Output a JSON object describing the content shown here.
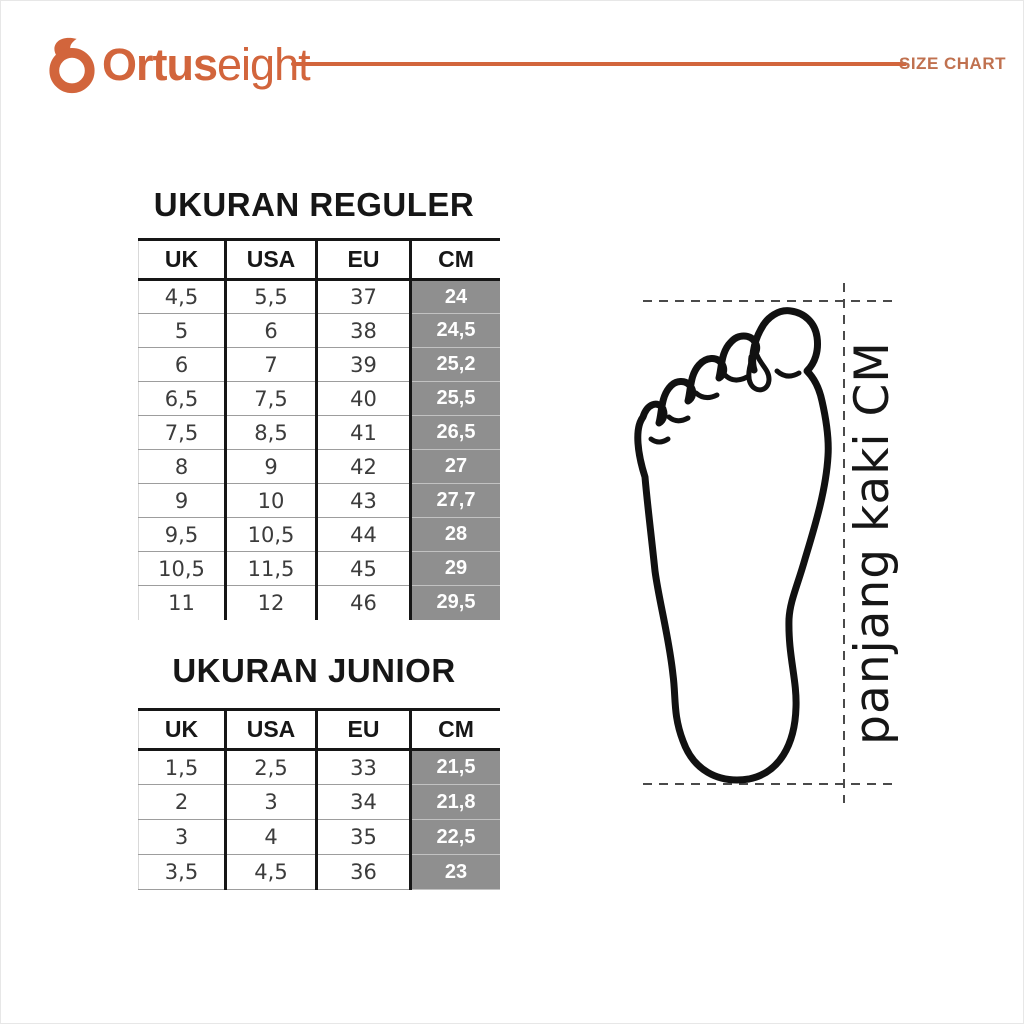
{
  "colors": {
    "accent": "#D2653C",
    "muted_accent": "#C0714F",
    "cell_gray": "#8F8F8F",
    "ink": "#161616"
  },
  "header": {
    "brand_bold": "Ortus",
    "brand_light": "eight",
    "tagline": "SIZE CHART"
  },
  "regular": {
    "title": "UKURAN REGULER",
    "columns": [
      "UK",
      "USA",
      "EU",
      "CM"
    ],
    "highlight_col": 3,
    "rows": [
      [
        "4,5",
        "5,5",
        "37",
        "24"
      ],
      [
        "5",
        "6",
        "38",
        "24,5"
      ],
      [
        "6",
        "7",
        "39",
        "25,2"
      ],
      [
        "6,5",
        "7,5",
        "40",
        "25,5"
      ],
      [
        "7,5",
        "8,5",
        "41",
        "26,5"
      ],
      [
        "8",
        "9",
        "42",
        "27"
      ],
      [
        "9",
        "10",
        "43",
        "27,7"
      ],
      [
        "9,5",
        "10,5",
        "44",
        "28"
      ],
      [
        "10,5",
        "11,5",
        "45",
        "29"
      ],
      [
        "11",
        "12",
        "46",
        "29,5"
      ]
    ]
  },
  "junior": {
    "title": "UKURAN JUNIOR",
    "columns": [
      "UK",
      "USA",
      "EU",
      "CM"
    ],
    "highlight_col": 3,
    "rows": [
      [
        "1,5",
        "2,5",
        "33",
        "21,5"
      ],
      [
        "2",
        "3",
        "34",
        "21,8"
      ],
      [
        "3",
        "4",
        "35",
        "22,5"
      ],
      [
        "3,5",
        "4,5",
        "36",
        "23"
      ]
    ]
  },
  "foot_diagram": {
    "label": "panjang kaki CM"
  }
}
